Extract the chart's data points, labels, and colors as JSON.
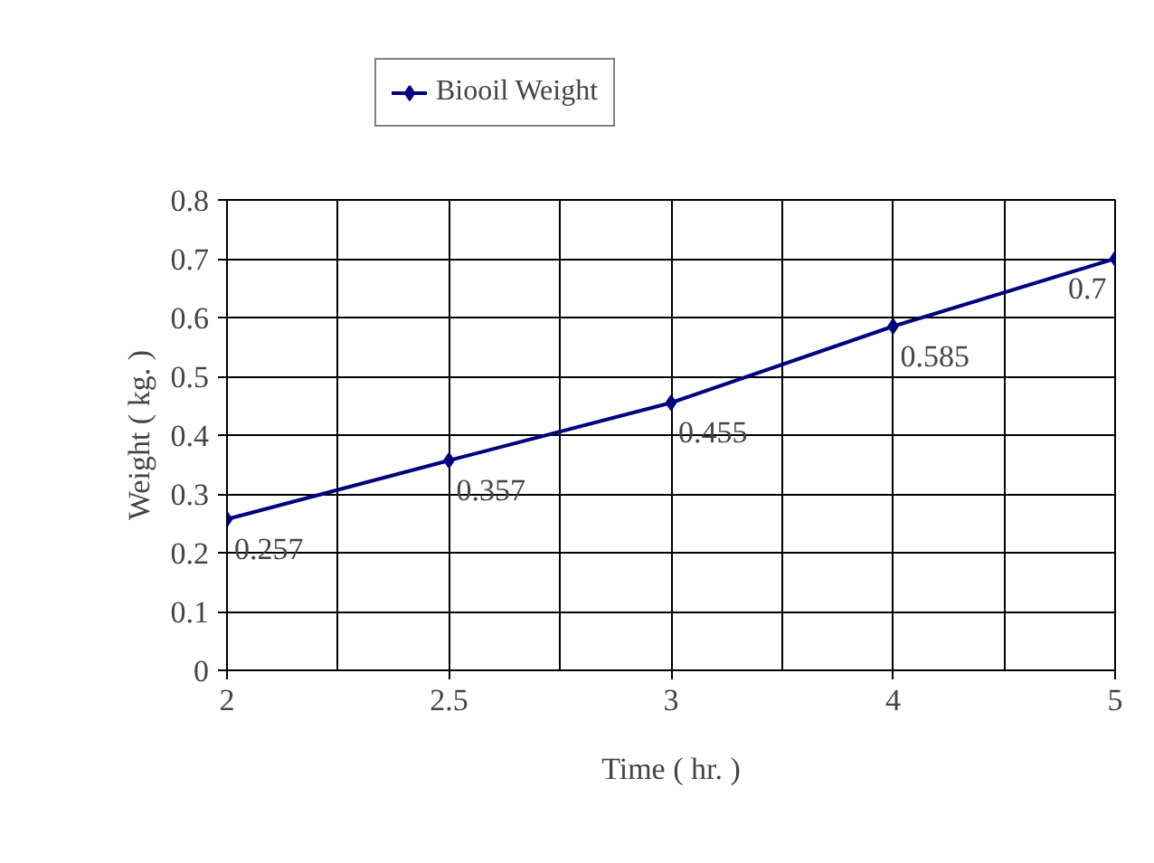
{
  "chart_data": {
    "type": "line",
    "xlabel": "Time ( hr. )",
    "ylabel": "Weight ( kg. )",
    "categories": [
      "2",
      "2.5",
      "3",
      "4",
      "5"
    ],
    "series": [
      {
        "name": "Biooil Weight",
        "color": "#000080",
        "values": [
          0.257,
          0.357,
          0.455,
          0.585,
          0.7
        ]
      }
    ],
    "ylim": [
      0,
      0.8
    ],
    "yticks": [
      0,
      0.1,
      0.2,
      0.3,
      0.4,
      0.5,
      0.6,
      0.7,
      0.8
    ],
    "grid": true,
    "legend": "top",
    "marker": "diamond",
    "line_style": "solid",
    "data_labels": true
  }
}
